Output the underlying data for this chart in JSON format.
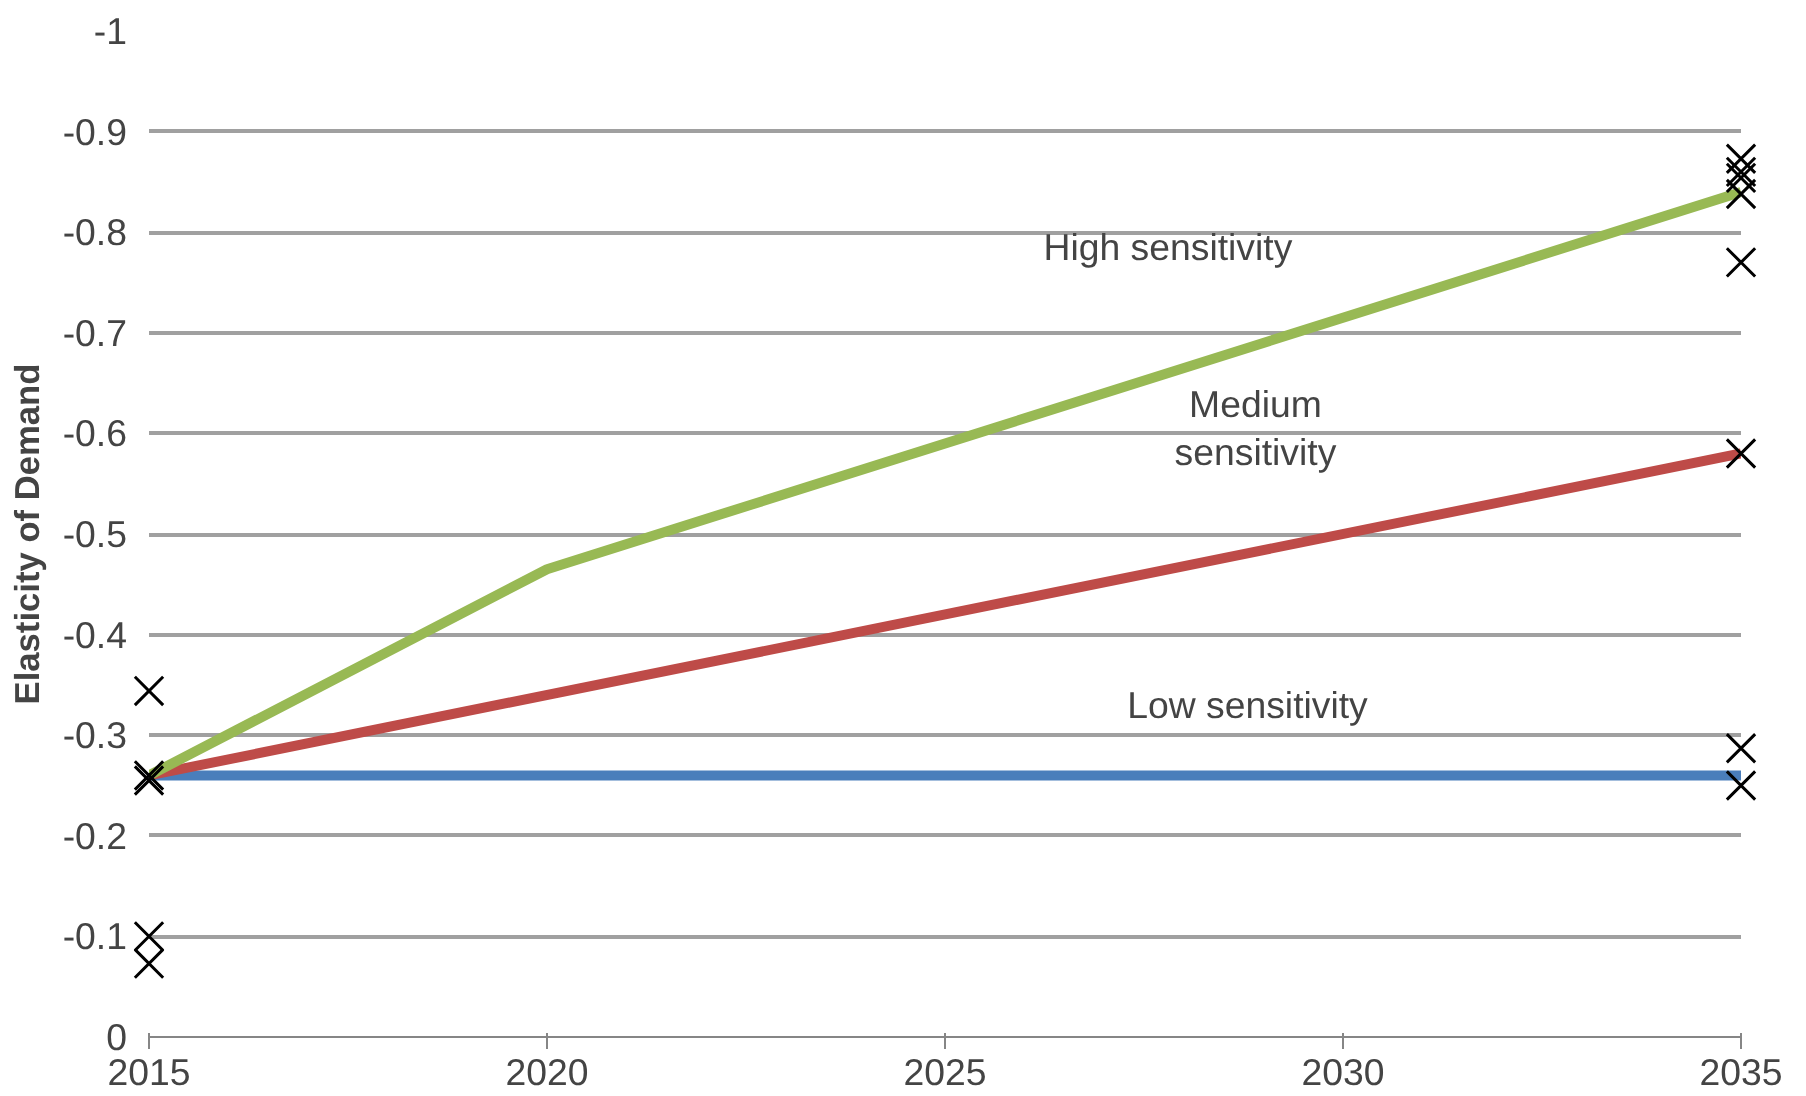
{
  "chart_data": {
    "type": "line",
    "ylabel": "Elasticity of Demand",
    "xlim": [
      2015,
      2035
    ],
    "xticks": [
      2015,
      2020,
      2025,
      2030,
      2035
    ],
    "ylim": [
      0,
      -1
    ],
    "yticks": [
      0,
      -0.1,
      -0.2,
      -0.3,
      -0.4,
      -0.5,
      -0.6,
      -0.7,
      -0.8,
      -0.9,
      -1
    ],
    "grid": "y",
    "series": [
      {
        "color": "#4a7ebb",
        "x": [
          2015,
          2035
        ],
        "values": [
          -0.26,
          -0.26
        ]
      },
      {
        "color": "#be4b48",
        "x": [
          2015,
          2035
        ],
        "values": [
          -0.26,
          -0.58
        ]
      },
      {
        "color": "#98b954",
        "x": [
          2015,
          2020,
          2035
        ],
        "values": [
          -0.26,
          -0.465,
          -0.84
        ]
      },
      {
        "type": "scatter",
        "color": "#000000",
        "marker": "cross",
        "x": [
          2015,
          2015,
          2015,
          2015,
          2015,
          2035,
          2035,
          2035,
          2035,
          2035,
          2035,
          2035,
          2035
        ],
        "values": [
          -0.344,
          -0.26,
          -0.255,
          -0.1,
          -0.073,
          -0.873,
          -0.86,
          -0.854,
          -0.838,
          -0.77,
          -0.58,
          -0.287,
          -0.25
        ]
      }
    ],
    "annotations": [
      "High sensitivity",
      "Medium\nsensitivity",
      "Low sensitivity"
    ]
  }
}
